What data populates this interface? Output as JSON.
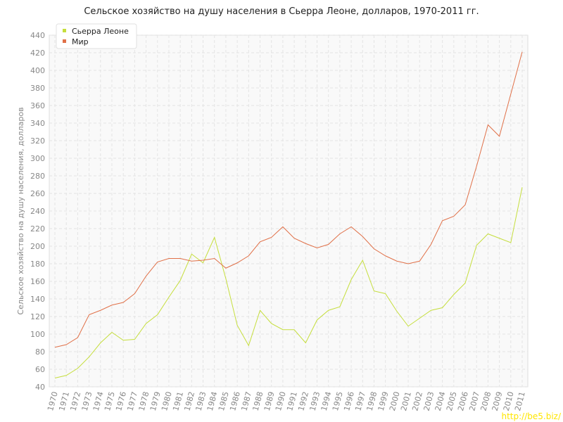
{
  "chart_data": {
    "type": "line",
    "title": "Сельское хозяйство на душу населения в Сьерра Леоне, долларов, 1970-2011 гг.",
    "y_label": "Сельское хозяйство на душу населения, долларов",
    "watermark": "http://be5.biz/",
    "x": [
      1970,
      1971,
      1972,
      1973,
      1974,
      1975,
      1976,
      1977,
      1978,
      1979,
      1980,
      1981,
      1982,
      1983,
      1984,
      1985,
      1986,
      1987,
      1988,
      1989,
      1990,
      1991,
      1992,
      1993,
      1994,
      1995,
      1996,
      1997,
      1998,
      1999,
      2000,
      2001,
      2002,
      2003,
      2004,
      2005,
      2006,
      2007,
      2008,
      2009,
      2010,
      2011
    ],
    "xlim": [
      1970,
      2011
    ],
    "xticks": [
      1970,
      1971,
      1972,
      1973,
      1974,
      1975,
      1976,
      1977,
      1978,
      1979,
      1980,
      1981,
      1982,
      1983,
      1984,
      1985,
      1986,
      1987,
      1988,
      1989,
      1990,
      1991,
      1992,
      1993,
      1994,
      1995,
      1996,
      1997,
      1998,
      1999,
      2000,
      2001,
      2002,
      2003,
      2004,
      2005,
      2006,
      2007,
      2008,
      2009,
      2010,
      2011
    ],
    "ylim": [
      40,
      440
    ],
    "yticks": [
      40,
      60,
      80,
      100,
      120,
      140,
      160,
      180,
      200,
      220,
      240,
      260,
      280,
      300,
      320,
      340,
      360,
      380,
      400,
      420,
      440
    ],
    "grid": true,
    "legend": "top-left",
    "series": [
      {
        "name": "Сьерра Леоне",
        "color": "#c5de3c",
        "values": [
          50,
          53,
          61,
          74,
          90,
          102,
          93,
          94,
          112,
          122,
          142,
          161,
          191,
          181,
          210,
          163,
          110,
          87,
          127,
          112,
          105,
          105,
          90,
          116,
          127,
          131,
          162,
          184,
          149,
          146,
          126,
          109,
          118,
          127,
          130,
          145,
          158,
          201,
          214,
          209,
          204,
          267
        ]
      },
      {
        "name": "Мир",
        "color": "#e07048",
        "values": [
          85,
          88,
          96,
          122,
          127,
          133,
          136,
          146,
          166,
          182,
          186,
          186,
          183,
          184,
          186,
          175,
          181,
          189,
          205,
          210,
          222,
          209,
          203,
          198,
          202,
          214,
          222,
          211,
          197,
          189,
          183,
          180,
          183,
          202,
          229,
          234,
          247,
          291,
          338,
          325,
          373,
          421
        ]
      }
    ]
  }
}
